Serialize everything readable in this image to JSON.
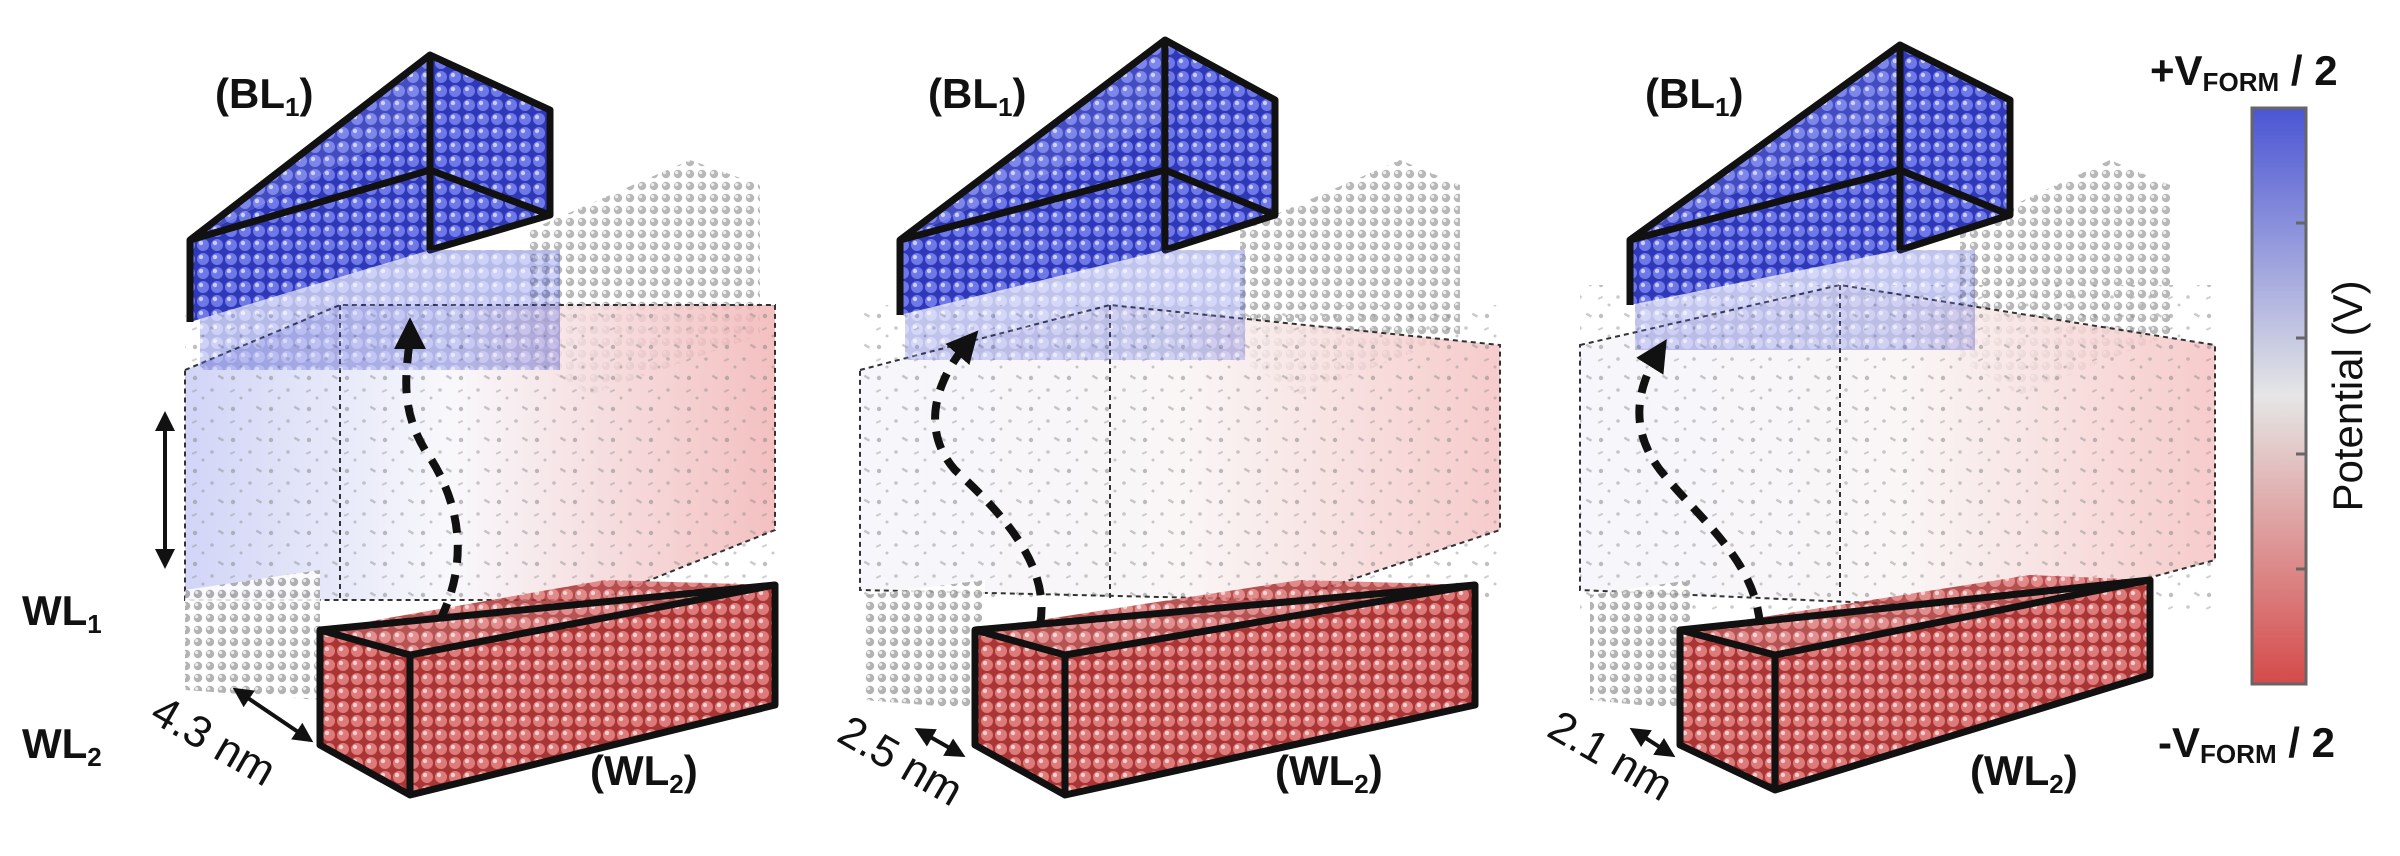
{
  "panels": [
    {
      "top_label": "(BL",
      "top_sub": "1",
      "bottom_label": "(WL",
      "bottom_sub": "2",
      "gap": "4.3 nm"
    },
    {
      "top_label": "(BL",
      "top_sub": "1",
      "bottom_label": "(WL",
      "bottom_sub": "2",
      "gap": "2.5 nm"
    },
    {
      "top_label": "(BL",
      "top_sub": "1",
      "bottom_label": "(WL",
      "bottom_sub": "2",
      "gap": "2.1 nm"
    }
  ],
  "side_labels": {
    "wl1": "WL",
    "wl1_sub": "1",
    "wl2": "WL",
    "wl2_sub": "2"
  },
  "colorbar": {
    "top_prefix": "+V",
    "top_sub": "FORM",
    "top_suffix": " / 2",
    "bottom_prefix": "-V",
    "bottom_sub": "FORM",
    "bottom_suffix": " / 2",
    "axis_label": "Potential (V)",
    "colors": {
      "high": "#4a55d4",
      "mid": "#e6e6e6",
      "low": "#d54a4a"
    }
  },
  "colors": {
    "bitline": "#3a44c8",
    "wordline": "#c84a4a",
    "atoms": "#9a9a9a",
    "outline": "#111111"
  }
}
